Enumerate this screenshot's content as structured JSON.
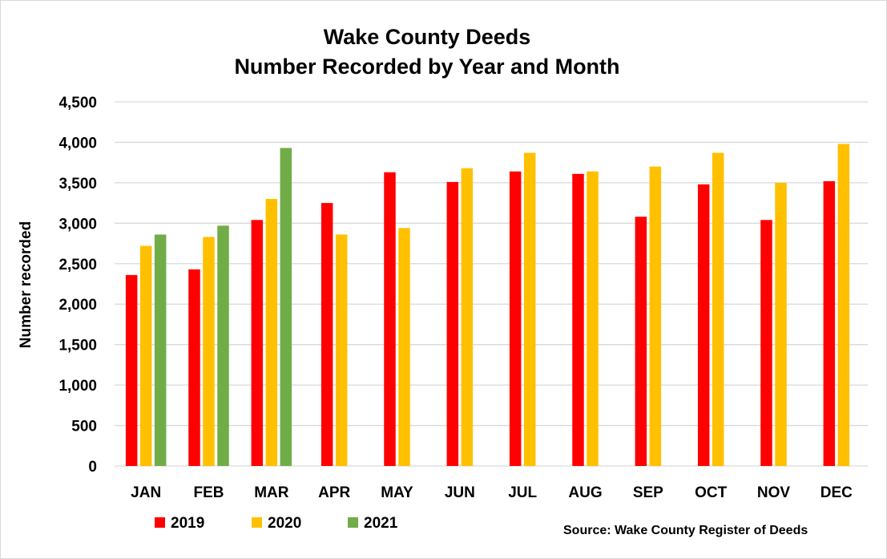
{
  "chart_data": {
    "type": "bar",
    "title": [
      "Wake County Deeds",
      "Number Recorded by Year and Month"
    ],
    "xlabel": "",
    "ylabel": "Number recorded",
    "ylim": [
      0,
      4500
    ],
    "yticks": [
      0,
      500,
      1000,
      1500,
      2000,
      2500,
      3000,
      3500,
      4000,
      4500
    ],
    "ytick_labels": [
      "0",
      "500",
      "1,000",
      "1,500",
      "2,000",
      "2,500",
      "3,000",
      "3,500",
      "4,000",
      "4,500"
    ],
    "grid": true,
    "legend_position": "bottom-left",
    "categories": [
      "JAN",
      "FEB",
      "MAR",
      "APR",
      "MAY",
      "JUN",
      "JUL",
      "AUG",
      "SEP",
      "OCT",
      "NOV",
      "DEC"
    ],
    "series": [
      {
        "name": "2019",
        "color": "#ff0000",
        "values": [
          2360,
          2430,
          3040,
          3250,
          3630,
          3510,
          3640,
          3610,
          3080,
          3480,
          3040,
          3520
        ]
      },
      {
        "name": "2020",
        "color": "#ffc000",
        "values": [
          2720,
          2830,
          3300,
          2860,
          2940,
          3680,
          3870,
          3640,
          3700,
          3870,
          3500,
          3980
        ]
      },
      {
        "name": "2021",
        "color": "#70ad47",
        "values": [
          2860,
          2970,
          3930,
          null,
          null,
          null,
          null,
          null,
          null,
          null,
          null,
          null
        ]
      }
    ],
    "source": "Source: Wake County Register of Deeds"
  },
  "colors": {
    "gridline": "#d9d9d9",
    "background": "#ffffff"
  }
}
